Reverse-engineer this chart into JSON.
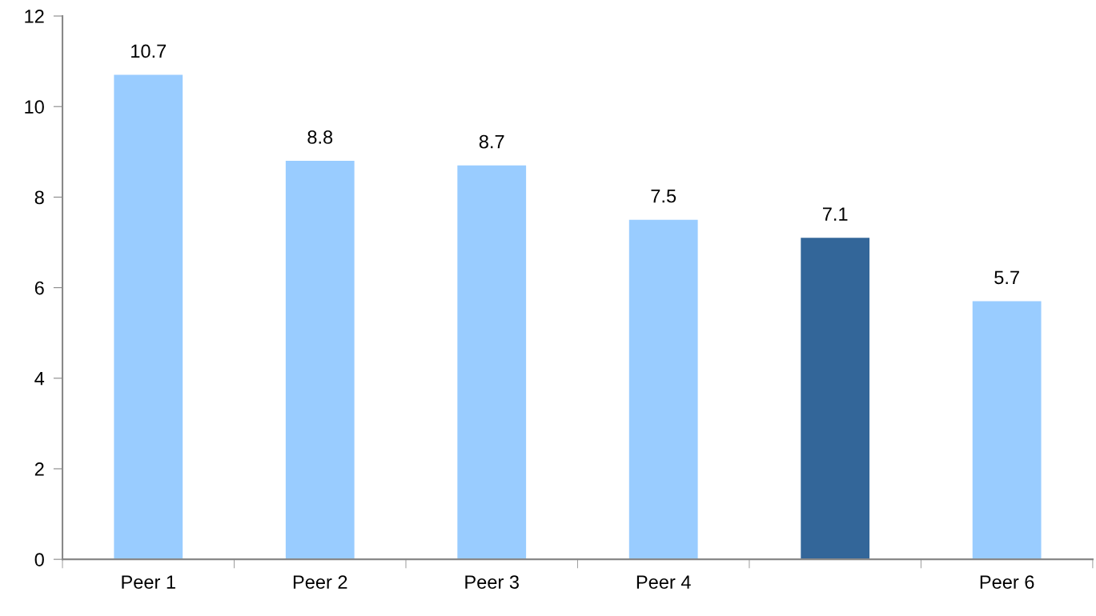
{
  "chart_data": {
    "type": "bar",
    "categories": [
      "Peer 1",
      "Peer 2",
      "Peer 3",
      "Peer 4",
      null,
      "Peer 6"
    ],
    "values": [
      10.7,
      8.8,
      8.7,
      7.5,
      7.1,
      5.7
    ],
    "colors": [
      "#99ccff",
      "#99ccff",
      "#99ccff",
      "#99ccff",
      "#336699",
      "#99ccff"
    ],
    "ylim": [
      0,
      12
    ],
    "yticks": [
      0,
      2,
      4,
      6,
      8,
      10,
      12
    ],
    "data_labels": true,
    "grid": false,
    "legend": false
  }
}
